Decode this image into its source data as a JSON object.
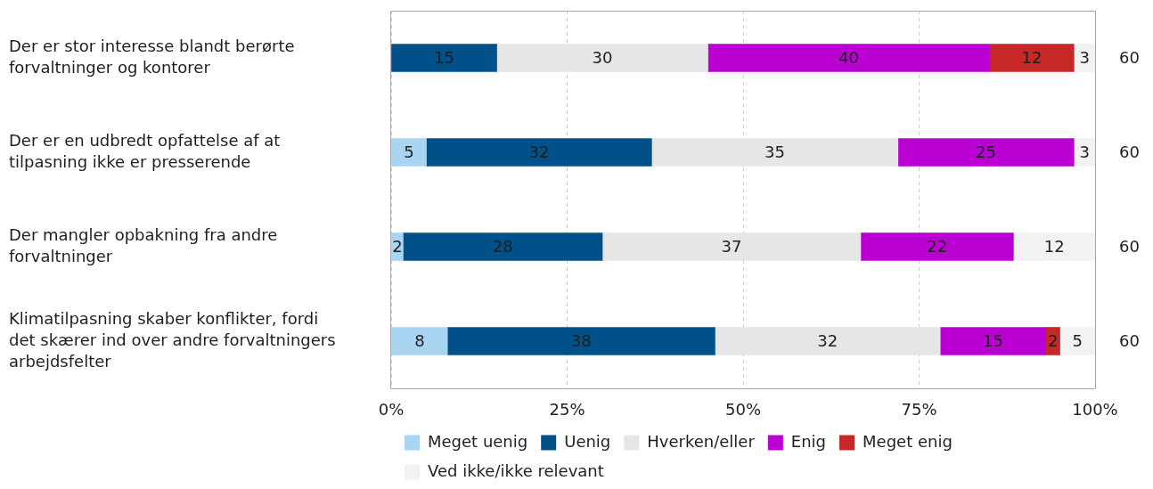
{
  "chart_data": {
    "type": "bar",
    "orientation": "horizontal",
    "stacked": true,
    "categories": [
      "Der er stor interesse blandt berørte forvaltninger og kontorer",
      "Der er en udbredt opfattelse af at tilpasning ikke er presserende",
      "Der mangler opbakning fra andre forvaltninger",
      "Klimatilpasning skaber konflikter, fordi det skærer ind over andre forvaltningers arbejdsfelter"
    ],
    "series": [
      {
        "name": "Meget uenig",
        "color": "#a9d4f2",
        "values": [
          null,
          5,
          1.7,
          8
        ],
        "value_labels": [
          null,
          "5",
          "2",
          "8"
        ]
      },
      {
        "name": "Uenig",
        "color": "#00508a",
        "values": [
          15,
          32,
          28.3,
          38
        ],
        "value_labels": [
          "15",
          "32",
          "28",
          "38"
        ]
      },
      {
        "name": "Hverken/eller",
        "color": "#e6e6e6",
        "values": [
          30,
          35,
          36.7,
          32
        ],
        "value_labels": [
          "30",
          "35",
          "37",
          "32"
        ]
      },
      {
        "name": "Enig",
        "color": "#bb00d4",
        "values": [
          40,
          25,
          21.7,
          15
        ],
        "value_labels": [
          "40",
          "25",
          "22",
          "15"
        ]
      },
      {
        "name": "Meget enig",
        "color": "#c62828",
        "values": [
          12,
          null,
          null,
          2
        ],
        "value_labels": [
          "12",
          null,
          null,
          "2"
        ]
      },
      {
        "name": "Ved ikke/ikke relevant",
        "color": "#f2f2f2",
        "values": [
          3,
          3,
          11.6,
          5
        ],
        "value_labels": [
          "3",
          "3",
          "12",
          "5"
        ]
      }
    ],
    "xlim": [
      0,
      100
    ],
    "xticks": [
      {
        "value": 0,
        "label": "0%"
      },
      {
        "value": 25,
        "label": "25%"
      },
      {
        "value": 50,
        "label": "50%"
      },
      {
        "value": 75,
        "label": "75%"
      },
      {
        "value": 100,
        "label": "100%"
      }
    ],
    "grid": "x",
    "legend": "bottom",
    "annotations": [
      "60",
      "60",
      "60",
      "60"
    ]
  }
}
